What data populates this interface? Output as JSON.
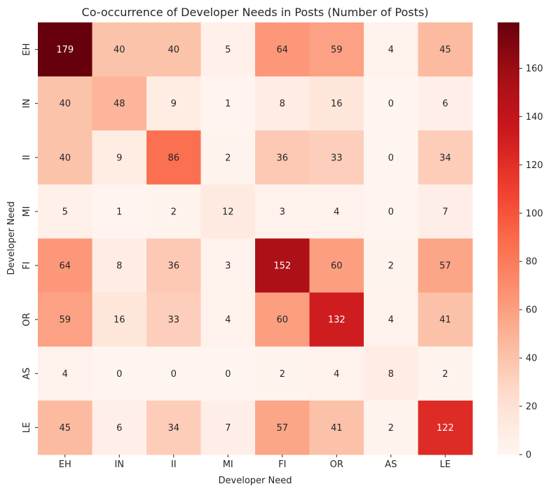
{
  "chart_data": {
    "type": "heatmap",
    "title": "Co-occurrence of Developer Needs in Posts (Number of Posts)",
    "xlabel": "Developer Need",
    "ylabel": "Developer Need",
    "x_categories": [
      "EH",
      "IN",
      "II",
      "MI",
      "FI",
      "OR",
      "AS",
      "LE"
    ],
    "y_categories": [
      "EH",
      "IN",
      "II",
      "MI",
      "FI",
      "OR",
      "AS",
      "LE"
    ],
    "values": [
      [
        179,
        40,
        40,
        5,
        64,
        59,
        4,
        45
      ],
      [
        40,
        48,
        9,
        1,
        8,
        16,
        0,
        6
      ],
      [
        40,
        9,
        86,
        2,
        36,
        33,
        0,
        34
      ],
      [
        5,
        1,
        2,
        12,
        3,
        4,
        0,
        7
      ],
      [
        64,
        8,
        36,
        3,
        152,
        60,
        2,
        57
      ],
      [
        59,
        16,
        33,
        4,
        60,
        132,
        4,
        41
      ],
      [
        4,
        0,
        0,
        0,
        2,
        4,
        8,
        2
      ],
      [
        45,
        6,
        34,
        7,
        57,
        41,
        2,
        122
      ]
    ],
    "colormap": "Reds",
    "vmin": 0,
    "vmax": 179,
    "colorbar_ticks": [
      0,
      20,
      40,
      60,
      80,
      100,
      120,
      140,
      160
    ],
    "annotations": true
  }
}
